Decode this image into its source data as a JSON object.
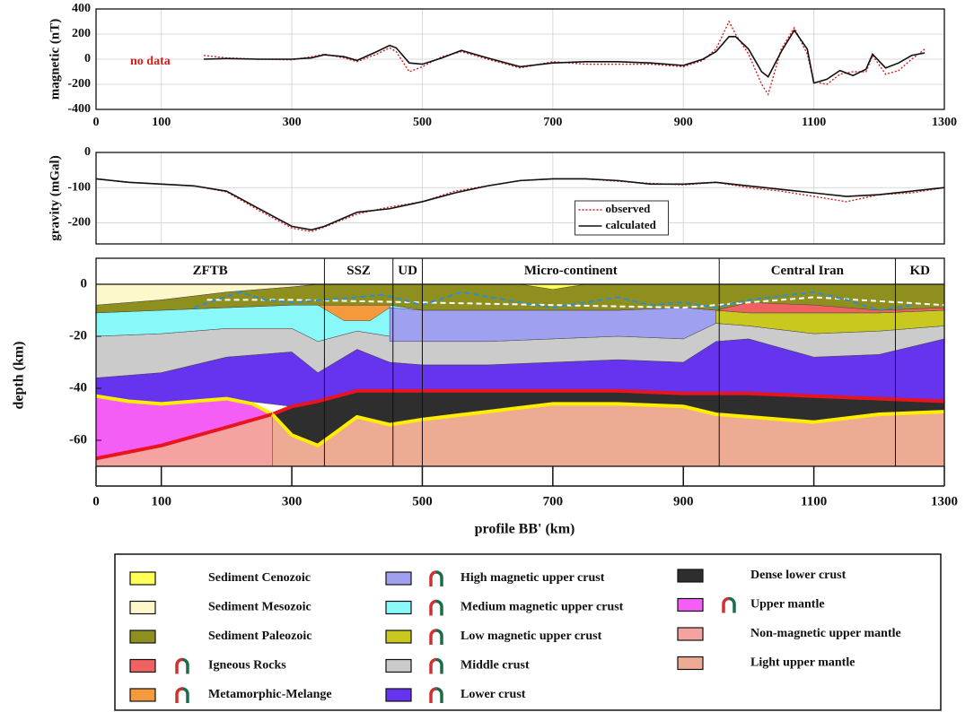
{
  "chart_data": [
    {
      "type": "line",
      "ylabel": "magnetic (nT)",
      "annotation": "no data",
      "annotation_color": "#d42020",
      "xlim": [
        0,
        1300
      ],
      "xticks": [
        0,
        100,
        300,
        500,
        700,
        900,
        1100,
        1300
      ],
      "show_xtick_labels": true,
      "ylim": [
        -400,
        400
      ],
      "yticks": [
        -400,
        -200,
        0,
        200,
        400
      ],
      "grid": true,
      "x": [
        165,
        200,
        250,
        300,
        330,
        350,
        380,
        400,
        430,
        450,
        460,
        480,
        500,
        530,
        560,
        600,
        650,
        700,
        750,
        800,
        850,
        900,
        930,
        950,
        970,
        980,
        1000,
        1020,
        1030,
        1050,
        1070,
        1090,
        1100,
        1120,
        1140,
        1160,
        1180,
        1190,
        1210,
        1230,
        1250,
        1270
      ],
      "series": [
        {
          "color": "#d42020",
          "dashed": true,
          "values": [
            30,
            10,
            0,
            -5,
            20,
            40,
            10,
            -20,
            40,
            90,
            60,
            -100,
            -60,
            20,
            60,
            0,
            -70,
            -20,
            -40,
            -40,
            -40,
            -60,
            -10,
            80,
            300,
            200,
            40,
            -200,
            -280,
            80,
            250,
            40,
            -180,
            -200,
            -120,
            -100,
            -100,
            30,
            -120,
            -90,
            0,
            80
          ]
        },
        {
          "color": "#111111",
          "dashed": false,
          "values": [
            0,
            5,
            0,
            0,
            10,
            35,
            20,
            -10,
            60,
            110,
            90,
            -30,
            -40,
            10,
            70,
            10,
            -60,
            -30,
            -20,
            -20,
            -30,
            -50,
            0,
            60,
            180,
            180,
            80,
            -100,
            -140,
            60,
            230,
            80,
            -190,
            -160,
            -90,
            -130,
            -80,
            40,
            -70,
            -30,
            30,
            50
          ]
        }
      ]
    },
    {
      "type": "line",
      "ylabel": "gravity (mGal)",
      "legend": "lower center",
      "xlim": [
        0,
        1300
      ],
      "xticks": [
        0,
        100,
        300,
        500,
        700,
        900,
        1100,
        1300
      ],
      "show_xtick_labels": false,
      "ylim": [
        -260,
        0
      ],
      "yticks": [
        -200,
        -100,
        0
      ],
      "grid": true,
      "x": [
        0,
        50,
        100,
        150,
        200,
        250,
        300,
        330,
        350,
        400,
        450,
        500,
        550,
        600,
        650,
        700,
        750,
        800,
        850,
        900,
        950,
        1000,
        1050,
        1100,
        1150,
        1200,
        1250,
        1300
      ],
      "series": [
        {
          "name": "observed",
          "color": "#d42020",
          "dashed": true,
          "values": [
            -75,
            -85,
            -90,
            -95,
            -112,
            -165,
            -215,
            -225,
            -212,
            -175,
            -155,
            -140,
            -110,
            -95,
            -80,
            -75,
            -75,
            -82,
            -88,
            -92,
            -85,
            -100,
            -110,
            -125,
            -140,
            -120,
            -115,
            -100
          ]
        },
        {
          "name": "calculated",
          "color": "#111111",
          "dashed": false,
          "values": [
            -75,
            -85,
            -90,
            -95,
            -110,
            -160,
            -210,
            -220,
            -210,
            -170,
            -160,
            -140,
            -115,
            -95,
            -80,
            -75,
            -75,
            -80,
            -90,
            -90,
            -85,
            -95,
            -105,
            -115,
            -125,
            -120,
            -110,
            -100
          ]
        }
      ]
    },
    {
      "type": "section",
      "ylabel": "depth (km)",
      "xlabel": "profile BB' (km)",
      "xlim": [
        0,
        1300
      ],
      "xticks": [
        0,
        100,
        300,
        500,
        700,
        900,
        1100,
        1300
      ],
      "ylim": [
        -70,
        10
      ],
      "yticks": [
        -60,
        -40,
        -20,
        0
      ],
      "regions": [
        {
          "name": "ZFTB",
          "from": 0,
          "to": 350
        },
        {
          "name": "SSZ",
          "from": 350,
          "to": 455
        },
        {
          "name": "UD",
          "from": 455,
          "to": 500
        },
        {
          "name": "Micro-continent",
          "from": 500,
          "to": 955
        },
        {
          "name": "Central Iran",
          "from": 955,
          "to": 1225
        },
        {
          "name": "KD",
          "from": 1225,
          "to": 1300
        }
      ],
      "layers": [
        {
          "name": "Sediment Cenozoic",
          "color": "#ffff55",
          "magnetic": false,
          "x": [
            650,
            700,
            750
          ],
          "top": [
            0,
            0,
            0
          ],
          "base": [
            0,
            -2,
            0
          ]
        },
        {
          "name": "Sediment Mesozoic",
          "color": "#fdf8cc",
          "magnetic": false,
          "x": [
            0,
            100,
            200,
            300,
            340
          ],
          "top": [
            0,
            0,
            0,
            0,
            0
          ],
          "base": [
            -8,
            -6,
            -3,
            -1,
            0
          ]
        },
        {
          "name": "Sediment Paleozoic",
          "color": "#8f8f1f",
          "magnetic": false,
          "x": [
            0,
            100,
            200,
            300,
            340,
            400,
            450,
            500,
            600,
            700,
            800,
            900,
            950,
            1000,
            1100,
            1200,
            1300
          ],
          "top": [
            -8,
            -6,
            -3,
            -1,
            0,
            0,
            0,
            0,
            0,
            0,
            0,
            0,
            0,
            0,
            0,
            0,
            0
          ],
          "base": [
            -11,
            -10,
            -9,
            -8,
            -8,
            -8,
            -8,
            -10,
            -10,
            -10,
            -10,
            -9,
            -10,
            -7,
            -8,
            -10,
            -9
          ]
        },
        {
          "name": "Igneous Rocks",
          "color": "#f06262",
          "magnetic": true,
          "x": [
            950,
            1000,
            1050,
            1100,
            1150,
            1200,
            1300
          ],
          "top": [
            -10,
            -7,
            -5,
            -8,
            -7,
            -10,
            -9
          ],
          "base": [
            -10,
            -11,
            -11,
            -11,
            -11,
            -11,
            -10
          ]
        },
        {
          "name": "Metamorphic-Melange",
          "color": "#f49a3c",
          "magnetic": true,
          "x": [
            340,
            380,
            420,
            450
          ],
          "top": [
            -8,
            -8,
            -8,
            -8
          ],
          "base": [
            -8,
            -14,
            -14,
            -9
          ]
        },
        {
          "name": "High magnetic upper crust",
          "color": "#a0a0f0",
          "magnetic": true,
          "x": [
            450,
            500,
            600,
            700,
            800,
            900,
            950
          ],
          "top": [
            -9,
            -10,
            -10,
            -10,
            -10,
            -9,
            -10
          ],
          "base": [
            -22,
            -22,
            -22,
            -21,
            -20,
            -21,
            -15
          ]
        },
        {
          "name": "Medium magnetic upper crust",
          "color": "#88f8f8",
          "magnetic": true,
          "x": [
            0,
            100,
            200,
            300,
            340,
            400,
            450,
            480
          ],
          "top": [
            -11,
            -10,
            -9,
            -8,
            -8,
            -8,
            -8,
            -9
          ],
          "base": [
            -20,
            -19,
            -17,
            -17,
            -22,
            -18,
            -20,
            -22
          ]
        },
        {
          "name": "Low magnetic upper crust",
          "color": "#c8c81e",
          "magnetic": true,
          "x": [
            950,
            1000,
            1100,
            1200,
            1300
          ],
          "top": [
            -10,
            -11,
            -11,
            -11,
            -10
          ],
          "base": [
            -15,
            -16,
            -19,
            -18,
            -16
          ]
        },
        {
          "name": "Middle crust",
          "color": "#cbcbcb",
          "magnetic": true,
          "x": [
            0,
            100,
            200,
            300,
            340,
            400,
            450,
            500,
            600,
            700,
            800,
            900,
            950,
            1000,
            1100,
            1200,
            1300
          ],
          "top": [
            -20,
            -19,
            -17,
            -17,
            -22,
            -18,
            -20,
            -22,
            -22,
            -21,
            -20,
            -21,
            -15,
            -16,
            -19,
            -18,
            -16
          ],
          "base": [
            -36,
            -34,
            -28,
            -26,
            -34,
            -25,
            -30,
            -31,
            -31,
            -30,
            -29,
            -30,
            -22,
            -21,
            -28,
            -27,
            -21
          ]
        },
        {
          "name": "Lower crust",
          "color": "#6633ee",
          "magnetic": true,
          "x": [
            0,
            100,
            200,
            300,
            340,
            400,
            450,
            500,
            600,
            700,
            800,
            900,
            950,
            1000,
            1100,
            1200,
            1300
          ],
          "top": [
            -36,
            -34,
            -28,
            -26,
            -34,
            -25,
            -30,
            -31,
            -31,
            -30,
            -29,
            -30,
            -22,
            -21,
            -28,
            -27,
            -21
          ],
          "base": [
            -43,
            -46,
            -44,
            -47,
            -45,
            -41,
            -41,
            -41,
            -41,
            -41,
            -41,
            -42,
            -42,
            -42,
            -43,
            -44,
            -45
          ]
        },
        {
          "name": "Dense lower crust",
          "color": "#2e2e2e",
          "magnetic": false,
          "top_line": "#e8141e",
          "x": [
            270,
            300,
            340,
            400,
            450,
            500,
            600,
            700,
            800,
            900,
            950,
            1000,
            1100,
            1200,
            1300
          ],
          "top": [
            -50,
            -47,
            -45,
            -41,
            -41,
            -41,
            -41,
            -41,
            -41,
            -42,
            -42,
            -42,
            -43,
            -44,
            -45
          ],
          "base": [
            -50,
            -58,
            -62,
            -51,
            -54,
            -52,
            -49,
            -46,
            -46,
            -47,
            -50,
            -51,
            -53,
            -50,
            -49
          ]
        },
        {
          "name": "Upper mantle",
          "color": "#f55ef5",
          "magnetic": true,
          "top_line": "#ffee00",
          "x": [
            0,
            50,
            100,
            200,
            240,
            270
          ],
          "top": [
            -43,
            -45,
            -46,
            -44,
            -46,
            -50
          ],
          "base": [
            -67,
            -65,
            -62,
            -55,
            -52,
            -50
          ]
        },
        {
          "name": "Non-magnetic upper mantle",
          "color": "#f5a3a0",
          "magnetic": false,
          "top_line": "#e8141e",
          "x": [
            0,
            100,
            200,
            270
          ],
          "top": [
            -67,
            -62,
            -55,
            -50
          ],
          "base": [
            -70,
            -70,
            -70,
            -70
          ]
        },
        {
          "name": "Light upper mantle",
          "color": "#eeab93",
          "magnetic": false,
          "top_line": "#ffee00",
          "x": [
            270,
            300,
            340,
            400,
            450,
            500,
            600,
            700,
            800,
            900,
            950,
            1000,
            1100,
            1200,
            1300
          ],
          "top": [
            -50,
            -58,
            -62,
            -51,
            -54,
            -52,
            -49,
            -46,
            -46,
            -47,
            -50,
            -51,
            -53,
            -50,
            -49
          ],
          "base": [
            -70,
            -70,
            -70,
            -70,
            -70,
            -70,
            -70,
            -70,
            -70,
            -70,
            -70,
            -70,
            -70,
            -70,
            -70
          ]
        }
      ],
      "lines": [
        {
          "color": "#ffffff",
          "x": [
            170,
            300,
            500,
            700,
            900,
            1100,
            1300
          ],
          "y": [
            -6,
            -6,
            -7,
            -8,
            -9,
            -5,
            -8
          ]
        },
        {
          "color": "#2a8fd0",
          "x": [
            150,
            220,
            260,
            300,
            400,
            440,
            500,
            560,
            650,
            700,
            800,
            850,
            900,
            950,
            1000,
            1100,
            1150,
            1200,
            1250
          ],
          "y": [
            -9,
            -3,
            -6,
            -7,
            -5,
            -4,
            -8,
            -3,
            -7,
            -9,
            -5,
            -8,
            -7,
            -9,
            -6,
            -3,
            -6,
            -10,
            -8
          ]
        }
      ]
    }
  ]
}
